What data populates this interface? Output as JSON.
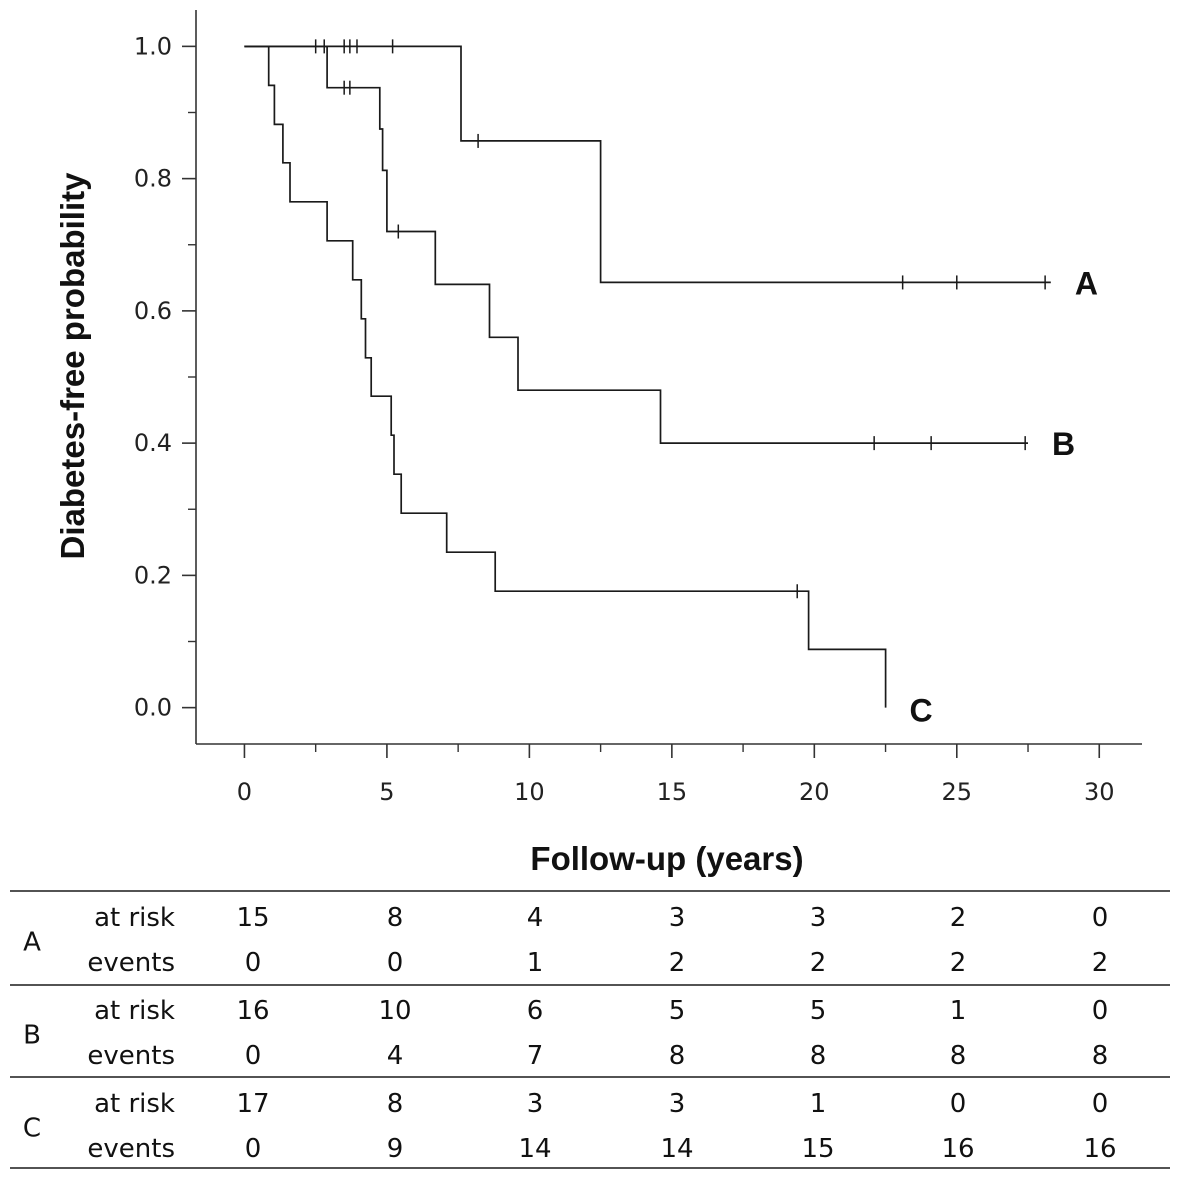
{
  "chart_data": {
    "type": "line",
    "subtype": "kaplan-meier",
    "title": "",
    "xlabel": "Follow-up (years)",
    "ylabel": "Diabetes-free probability",
    "xlim": [
      -1.7,
      31.5
    ],
    "ylim": [
      -0.055,
      1.055
    ],
    "x_ticks": [
      0,
      5,
      10,
      15,
      20,
      25,
      30
    ],
    "x_tick_labels": [
      "0",
      "5",
      "10",
      "15",
      "20",
      "25",
      "30"
    ],
    "y_ticks": [
      0.0,
      0.2,
      0.4,
      0.6,
      0.8,
      1.0
    ],
    "y_tick_labels": [
      "0.0",
      "0.2",
      "0.4",
      "0.6",
      "0.8",
      "1.0"
    ],
    "grid": false,
    "series": [
      {
        "name": "A",
        "label": "A",
        "steps": [
          [
            0,
            1.0
          ],
          [
            7.6,
            0.857
          ],
          [
            12.5,
            0.643
          ],
          [
            28.3,
            0.643
          ]
        ],
        "censored": [
          [
            2.5,
            1.0
          ],
          [
            2.8,
            1.0
          ],
          [
            3.5,
            1.0
          ],
          [
            3.7,
            1.0
          ],
          [
            3.95,
            1.0
          ],
          [
            5.2,
            1.0
          ],
          [
            8.2,
            0.857
          ],
          [
            23.1,
            0.643
          ],
          [
            25.0,
            0.643
          ],
          [
            28.1,
            0.643
          ]
        ]
      },
      {
        "name": "B",
        "label": "B",
        "steps": [
          [
            0,
            1.0
          ],
          [
            2.9,
            0.9375
          ],
          [
            4.75,
            0.875
          ],
          [
            4.85,
            0.8125
          ],
          [
            5.0,
            0.72
          ],
          [
            6.7,
            0.64
          ],
          [
            8.6,
            0.56
          ],
          [
            9.6,
            0.48
          ],
          [
            14.6,
            0.4
          ],
          [
            27.5,
            0.4
          ]
        ],
        "censored": [
          [
            3.5,
            0.9375
          ],
          [
            3.7,
            0.9375
          ],
          [
            5.4,
            0.72
          ],
          [
            22.1,
            0.4
          ],
          [
            24.1,
            0.4
          ],
          [
            27.4,
            0.4
          ]
        ]
      },
      {
        "name": "C",
        "label": "C",
        "steps": [
          [
            0,
            1.0
          ],
          [
            0.85,
            0.941
          ],
          [
            1.05,
            0.882
          ],
          [
            1.35,
            0.824
          ],
          [
            1.6,
            0.765
          ],
          [
            2.9,
            0.706
          ],
          [
            3.8,
            0.647
          ],
          [
            4.1,
            0.588
          ],
          [
            4.25,
            0.529
          ],
          [
            4.45,
            0.471
          ],
          [
            5.15,
            0.412
          ],
          [
            5.25,
            0.353
          ],
          [
            5.5,
            0.294
          ],
          [
            7.1,
            0.235
          ],
          [
            8.8,
            0.176
          ],
          [
            19.8,
            0.088
          ],
          [
            22.5,
            0.0
          ]
        ],
        "censored": [
          [
            19.4,
            0.176
          ]
        ]
      }
    ]
  },
  "risk_table": {
    "time_points": [
      0,
      5,
      10,
      15,
      20,
      25,
      30
    ],
    "groups": [
      {
        "name": "A",
        "at_risk_label": "at risk",
        "events_label": "events",
        "at_risk": [
          "15",
          "8",
          "4",
          "3",
          "3",
          "2",
          "0"
        ],
        "events": [
          "0",
          "0",
          "1",
          "2",
          "2",
          "2",
          "2"
        ]
      },
      {
        "name": "B",
        "at_risk_label": "at risk",
        "events_label": "events",
        "at_risk": [
          "16",
          "10",
          "6",
          "5",
          "5",
          "1",
          "0"
        ],
        "events": [
          "0",
          "4",
          "7",
          "8",
          "8",
          "8",
          "8"
        ]
      },
      {
        "name": "C",
        "at_risk_label": "at risk",
        "events_label": "events",
        "at_risk": [
          "17",
          "8",
          "3",
          "3",
          "1",
          "0",
          "0"
        ],
        "events": [
          "0",
          "9",
          "14",
          "14",
          "15",
          "16",
          "16"
        ]
      }
    ]
  },
  "colors": {
    "line": "#1a1a1a",
    "axis": "#333333",
    "text": "#111111",
    "background": "#ffffff"
  }
}
